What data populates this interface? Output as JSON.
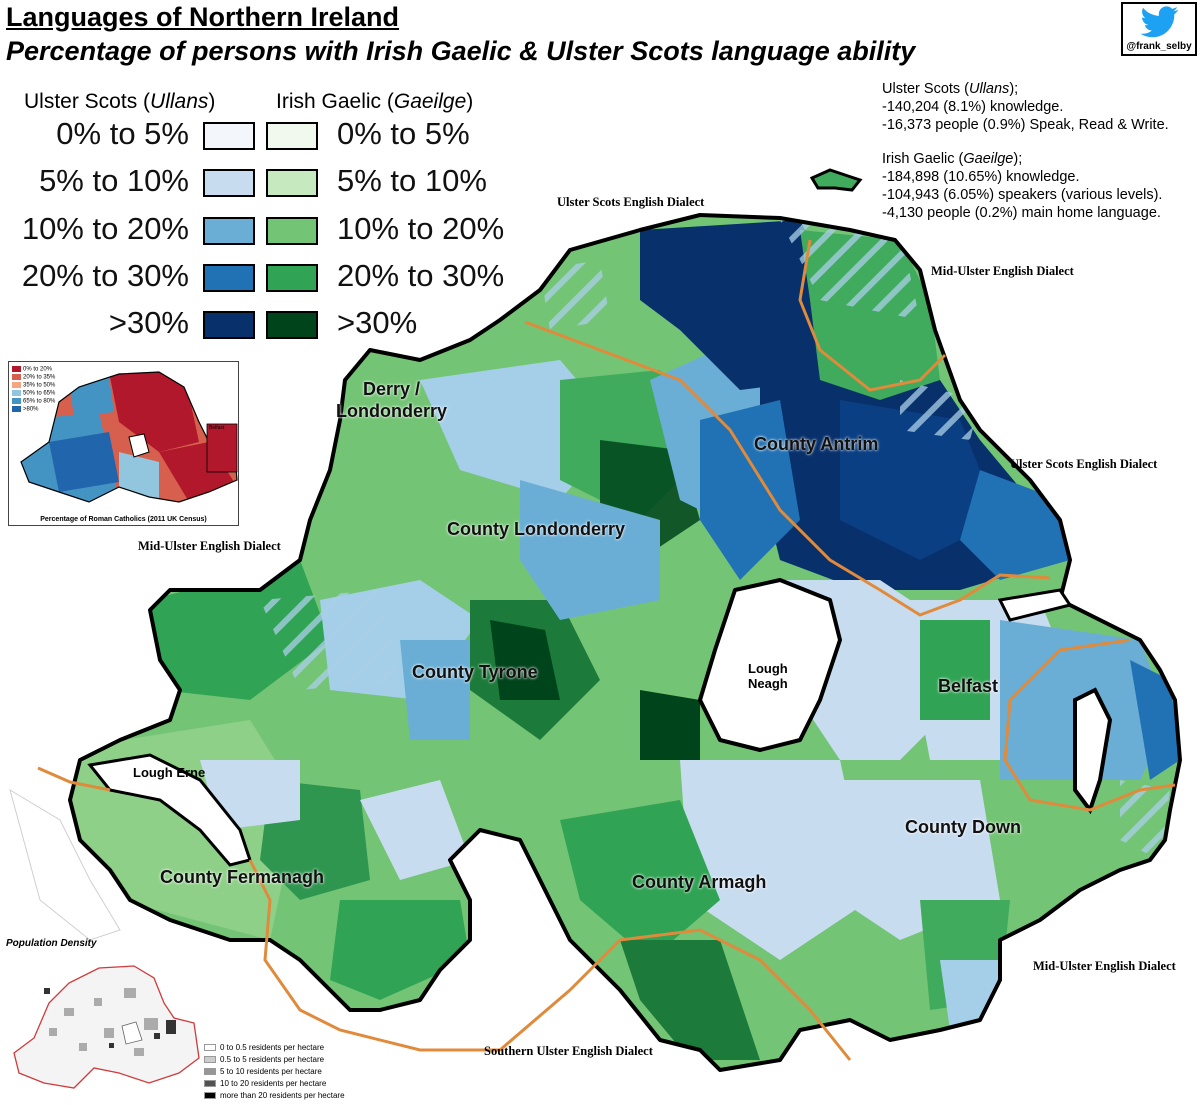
{
  "title": "Languages of Northern Ireland",
  "subtitle": "Percentage of persons with Irish Gaelic & Ulster Scots language ability",
  "twitter_handle": "@frank_selby",
  "legend": {
    "ulster_heading": "Ulster Scots (",
    "ulster_heading_italic": "Ullans",
    "ulster_heading_end": ")",
    "irish_heading": "Irish Gaelic (",
    "irish_heading_italic": "Gaeilge",
    "irish_heading_end": ")",
    "classes": [
      {
        "label": "0% to 5%",
        "scots_color": "#f3f7fc",
        "gaelic_color": "#f1f9ef"
      },
      {
        "label": "5% to 10%",
        "scots_color": "#c8dcf0",
        "gaelic_color": "#c7e9c0"
      },
      {
        "label": "10% to 20%",
        "scots_color": "#6aaed6",
        "gaelic_color": "#74c476"
      },
      {
        "label": "20% to 30%",
        "scots_color": "#2171b5",
        "gaelic_color": "#31a354"
      },
      {
        "label": ">30%",
        "scots_color": "#08306b",
        "gaelic_color": "#00441b"
      }
    ]
  },
  "stats": {
    "scots_heading": "Ulster Scots (",
    "scots_heading_italic": "Ullans",
    "scots_heading_end": ");",
    "scots_lines": [
      "-140,204 (8.1%) knowledge.",
      "-16,373 people (0.9%) Speak, Read & Write."
    ],
    "irish_heading": "Irish Gaelic (",
    "irish_heading_italic": "Gaeilge",
    "irish_heading_end": ");",
    "irish_lines": [
      "-184,898 (10.65%) knowledge.",
      "-104,943 (6.05%) speakers (various levels).",
      "-4,130 people (0.2%) main home language."
    ]
  },
  "dialects": {
    "north": "Ulster Scots English Dialect",
    "northeast": "Mid-Ulster English Dialect",
    "east": "Ulster Scots English Dialect",
    "west": "Mid-Ulster English Dialect",
    "southeast": "Mid-Ulster English Dialect",
    "south": "Southern Ulster English Dialect"
  },
  "places": {
    "derry": "Derry /\nLondonderry",
    "antrim": "County Antrim",
    "londonderry": "County Londonderry",
    "tyrone": "County Tyrone",
    "lough_neagh": "Lough\nNeagh",
    "belfast": "Belfast",
    "lough_erne": "Lough Erne",
    "down": "County Down",
    "fermanagh": "County Fermanagh",
    "armagh": "County Armagh"
  },
  "inset_catholic": {
    "caption": "Percentage of Roman Catholics (2011 UK Census)",
    "belfast_label": "Belfast",
    "classes": [
      {
        "label": "0% to 20%",
        "color": "#b2182b"
      },
      {
        "label": "20% to 35%",
        "color": "#d6604d"
      },
      {
        "label": "35% to 50%",
        "color": "#f4a582"
      },
      {
        "label": "50% to 65%",
        "color": "#92c5de"
      },
      {
        "label": "65% to 80%",
        "color": "#4393c3"
      },
      {
        "label": ">80%",
        "color": "#2166ac"
      }
    ]
  },
  "inset_density": {
    "title": "Population Density",
    "classes": [
      {
        "label": "0 to 0.5 residents per hectare",
        "color": "#ffffff"
      },
      {
        "label": "0.5 to 5 residents per hectare",
        "color": "#cccccc"
      },
      {
        "label": "5 to 10 residents per hectare",
        "color": "#969696"
      },
      {
        "label": "10 to 20 residents per hectare",
        "color": "#525252"
      },
      {
        "label": "more than 20 residents per hectare",
        "color": "#000000"
      }
    ]
  }
}
